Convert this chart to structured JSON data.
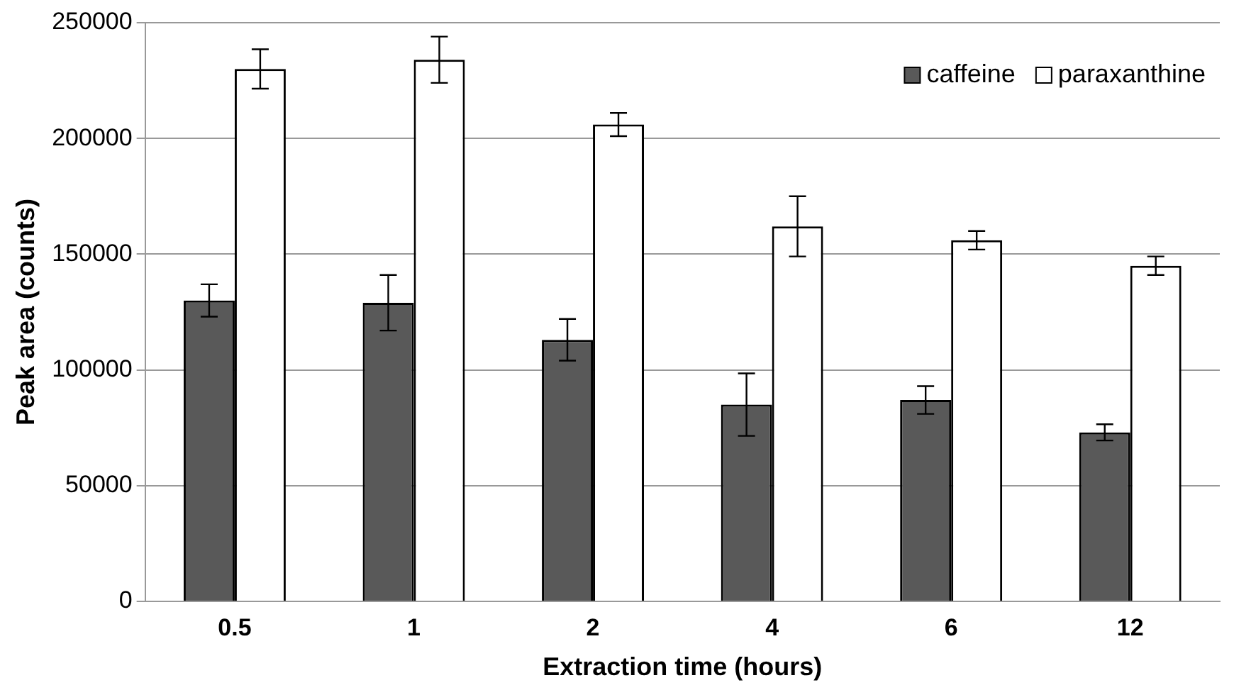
{
  "chart_data": {
    "type": "bar",
    "xlabel": "Extraction time (hours)",
    "ylabel": "Peak area (counts)",
    "categories": [
      "0.5",
      "1",
      "2",
      "4",
      "6",
      "12"
    ],
    "series": [
      {
        "name": "caffeine",
        "color": "#595959",
        "values": [
          130000,
          129000,
          113000,
          85000,
          87000,
          73000
        ],
        "errors": [
          7000,
          12000,
          9000,
          13500,
          6000,
          3500
        ]
      },
      {
        "name": "paraxanthine",
        "color": "#ffffff",
        "values": [
          230000,
          234000,
          206000,
          162000,
          156000,
          145000
        ],
        "errors": [
          8500,
          10000,
          5000,
          13000,
          4000,
          4000
        ]
      }
    ],
    "ylim": [
      0,
      250000
    ],
    "yticks": [
      0,
      50000,
      100000,
      150000,
      200000,
      250000
    ],
    "grid": "y",
    "legend": "top right"
  }
}
